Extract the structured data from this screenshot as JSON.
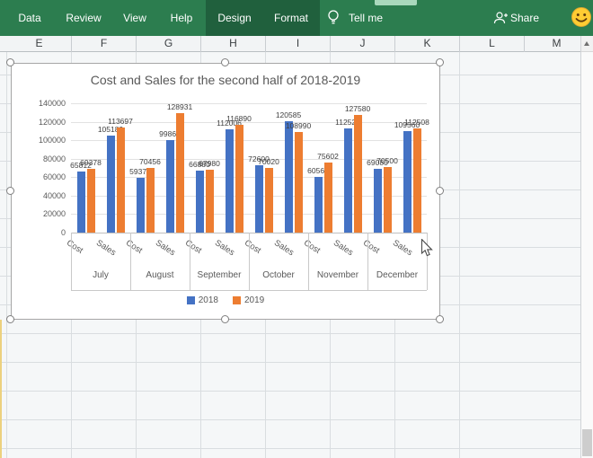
{
  "ribbon": {
    "tabs": [
      {
        "label": "Data",
        "contextual": false
      },
      {
        "label": "Review",
        "contextual": false
      },
      {
        "label": "View",
        "contextual": false
      },
      {
        "label": "Help",
        "contextual": false
      },
      {
        "label": "Design",
        "contextual": true
      },
      {
        "label": "Format",
        "contextual": true
      }
    ],
    "tell_me_label": "Tell me",
    "share_label": "Share",
    "colors": {
      "ribbon_green": "#2C7D4F",
      "contextual_green": "#20603D",
      "contextual_tab_sliver": "#A9D8BC"
    }
  },
  "sheet": {
    "column_headers": [
      "E",
      "F",
      "G",
      "H",
      "I",
      "J",
      "K",
      "L",
      "M"
    ]
  },
  "chart_data": {
    "type": "bar",
    "title": "Cost and Sales for the second half of 2018-2019",
    "group_labels": [
      "July",
      "August",
      "September",
      "October",
      "November",
      "December"
    ],
    "categories": [
      "Cost",
      "Sales",
      "Cost",
      "Sales",
      "Cost",
      "Sales",
      "Cost",
      "Sales",
      "Cost",
      "Sales",
      "Cost",
      "Sales"
    ],
    "series": [
      {
        "name": "2018",
        "color": "#4472C4",
        "values": [
          65812,
          105189,
          59378,
          99862,
          66880,
          112006,
          72600,
          120585,
          60560,
          112526,
          69080,
          109560
        ]
      },
      {
        "name": "2019",
        "color": "#ED7D31",
        "values": [
          69378,
          113697,
          70456,
          128931,
          67980,
          116890,
          70020,
          108990,
          75602,
          127580,
          70500,
          112508
        ]
      }
    ],
    "ylabel": "",
    "xlabel": "",
    "ylim": [
      0,
      140000
    ],
    "ytick_step": 20000,
    "grid": true,
    "legend_position": "bottom",
    "data_labels": true
  }
}
